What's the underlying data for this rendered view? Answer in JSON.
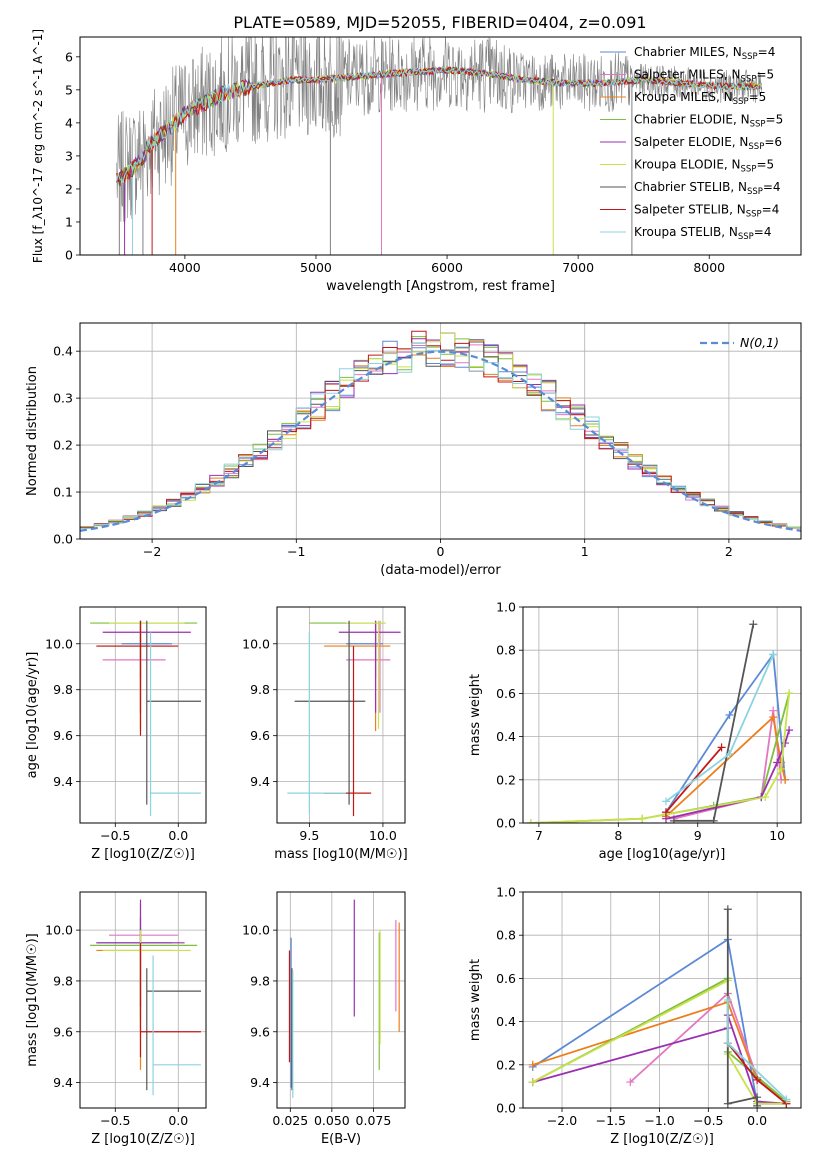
{
  "figure": {
    "title": "PLATE=0589, MJD=52055, FIBERID=0404, z=0.091"
  },
  "colors": {
    "Chabrier MILES": "#5b8ad6",
    "Salpeter MILES": "#e377c2",
    "Kroupa MILES": "#ee7d1b",
    "Chabrier ELODIE": "#7fbf3f",
    "Salpeter ELODIE": "#9b30b0",
    "Kroupa ELODIE": "#c7e24a",
    "Chabrier STELIB": "#555555",
    "Salpeter STELIB": "#c01818",
    "Kroupa STELIB": "#8cd3e0"
  },
  "chart_data": [
    {
      "id": "spectrum",
      "type": "line",
      "xlabel": "wavelength [Angstrom, rest frame]",
      "ylabel": "Flux [f_λ10^-17 erg cm^-2 s^-1 A^-1]",
      "xlim": [
        3200,
        8700
      ],
      "ylim": [
        0,
        6.6
      ],
      "xticks": [
        4000,
        5000,
        6000,
        7000,
        8000
      ],
      "yticks": [
        0,
        1,
        2,
        3,
        4,
        5,
        6
      ],
      "grid": false,
      "legend": "right",
      "continuum": {
        "x": [
          3500,
          3600,
          3700,
          3800,
          3900,
          4000,
          4100,
          4300,
          4500,
          4800,
          5000,
          5300,
          5600,
          6000,
          6300,
          6600,
          6900,
          7200,
          7500,
          7800,
          8100,
          8400
        ],
        "y": [
          2.5,
          2.8,
          3.2,
          3.6,
          3.9,
          4.3,
          4.5,
          4.9,
          5.1,
          5.3,
          5.3,
          5.4,
          5.5,
          5.6,
          5.5,
          5.3,
          5.2,
          5.2,
          5.3,
          5.2,
          5.1,
          5.1
        ]
      },
      "absorption_lines": [
        3500,
        3540,
        3600,
        3680,
        3750,
        3930,
        5110,
        5500,
        6810,
        7410
      ],
      "series": [
        {
          "name": "Chabrier MILES, N_SSP=4",
          "main": "Chabrier MILES, N",
          "sub": "SSP",
          "tail": "=4"
        },
        {
          "name": "Salpeter MILES, N_SSP=5",
          "main": "Salpeter MILES, N",
          "sub": "SSP",
          "tail": "=5"
        },
        {
          "name": "Kroupa MILES, N_SSP=5",
          "main": "Kroupa MILES, N",
          "sub": "SSP",
          "tail": "=5"
        },
        {
          "name": "Chabrier ELODIE, N_SSP=5",
          "main": "Chabrier ELODIE, N",
          "sub": "SSP",
          "tail": "=5"
        },
        {
          "name": "Salpeter ELODIE, N_SSP=6",
          "main": "Salpeter ELODIE, N",
          "sub": "SSP",
          "tail": "=6"
        },
        {
          "name": "Kroupa ELODIE, N_SSP=5",
          "main": "Kroupa ELODIE, N",
          "sub": "SSP",
          "tail": "=5"
        },
        {
          "name": "Chabrier STELIB, N_SSP=4",
          "main": "Chabrier STELIB, N",
          "sub": "SSP",
          "tail": "=4"
        },
        {
          "name": "Salpeter STELIB, N_SSP=4",
          "main": "Salpeter STELIB, N",
          "sub": "SSP",
          "tail": "=4"
        },
        {
          "name": "Kroupa STELIB, N_SSP=4",
          "main": "Kroupa STELIB, N",
          "sub": "SSP",
          "tail": "=4"
        }
      ]
    },
    {
      "id": "residuals",
      "type": "line",
      "xlabel": "(data-model)/error",
      "ylabel": "Normed distribution",
      "xlim": [
        -2.5,
        2.5
      ],
      "ylim": [
        0,
        0.46
      ],
      "xticks": [
        -2,
        -1,
        0,
        1,
        2
      ],
      "yticks": [
        0,
        0.1,
        0.2,
        0.3,
        0.4
      ],
      "grid": true,
      "legend": "top-right",
      "legend_label": "N(0,1)",
      "histogram_bin_width": 0.1
    },
    {
      "id": "age-vs-Z",
      "type": "scatter",
      "xlabel": "Z [log10(Z/Z☉)]",
      "ylabel": "age  [log10(age/yr)]",
      "xlim": [
        -0.78,
        0.22
      ],
      "ylim": [
        9.22,
        10.16
      ],
      "xticks": [
        -0.5,
        0.0
      ],
      "yticks": [
        9.4,
        9.6,
        9.8,
        10.0
      ],
      "grid": true,
      "points": [
        {
          "s": "Chabrier MILES",
          "x": -0.3,
          "y": 10.0,
          "x0": -0.45,
          "x1": -0.05,
          "y0": 9.85,
          "y1": 10.1
        },
        {
          "s": "Salpeter MILES",
          "x": -0.3,
          "y": 9.93,
          "x0": -0.6,
          "x1": -0.1,
          "y0": 9.7,
          "y1": 10.1
        },
        {
          "s": "Kroupa MILES",
          "x": -0.3,
          "y": 9.99,
          "x0": -0.65,
          "x1": -0.05,
          "y0": 9.62,
          "y1": 10.1
        },
        {
          "s": "Chabrier ELODIE",
          "x": -0.3,
          "y": 10.09,
          "x0": -0.7,
          "x1": 0.15,
          "y0": 9.85,
          "y1": 10.1
        },
        {
          "s": "Salpeter ELODIE",
          "x": -0.3,
          "y": 10.05,
          "x0": -0.6,
          "x1": 0.1,
          "y0": 9.7,
          "y1": 10.1
        },
        {
          "s": "Kroupa ELODIE",
          "x": -0.3,
          "y": 10.09,
          "x0": -0.55,
          "x1": 0.05,
          "y0": 9.63,
          "y1": 10.1
        },
        {
          "s": "Chabrier STELIB",
          "x": -0.25,
          "y": 9.75,
          "x0": -0.25,
          "x1": 0.18,
          "y0": 9.3,
          "y1": 10.1
        },
        {
          "s": "Salpeter STELIB",
          "x": -0.3,
          "y": 9.99,
          "x0": -0.65,
          "x1": 0.0,
          "y0": 9.6,
          "y1": 10.1
        },
        {
          "s": "Kroupa STELIB",
          "x": -0.22,
          "y": 9.35,
          "x0": -0.22,
          "x1": 0.18,
          "y0": 9.25,
          "y1": 10.05
        }
      ]
    },
    {
      "id": "age-vs-mass",
      "type": "scatter",
      "xlabel": "mass [log10(M/M☉)]",
      "ylabel": "",
      "xlim": [
        9.28,
        10.15
      ],
      "ylim": [
        9.22,
        10.16
      ],
      "xticks": [
        9.5,
        10.0
      ],
      "yticks": [
        9.4,
        9.6,
        9.8,
        10.0
      ],
      "grid": true,
      "points": [
        {
          "s": "Chabrier MILES",
          "x": 9.95,
          "y": 10.0,
          "x0": 9.75,
          "x1": 10.0,
          "y0": 9.85,
          "y1": 10.1
        },
        {
          "s": "Salpeter MILES",
          "x": 9.98,
          "y": 9.93,
          "x0": 9.75,
          "x1": 10.05,
          "y0": 9.7,
          "y1": 10.1
        },
        {
          "s": "Kroupa MILES",
          "x": 9.95,
          "y": 9.99,
          "x0": 9.6,
          "x1": 10.05,
          "y0": 9.62,
          "y1": 10.1
        },
        {
          "s": "Chabrier ELODIE",
          "x": 9.95,
          "y": 10.09,
          "x0": 9.5,
          "x1": 10.0,
          "y0": 9.9,
          "y1": 10.1
        },
        {
          "s": "Salpeter ELODIE",
          "x": 9.95,
          "y": 10.05,
          "x0": 9.7,
          "x1": 10.12,
          "y0": 9.7,
          "y1": 10.1
        },
        {
          "s": "Kroupa ELODIE",
          "x": 9.97,
          "y": 10.09,
          "x0": 9.75,
          "x1": 10.02,
          "y0": 9.63,
          "y1": 10.1
        },
        {
          "s": "Chabrier STELIB",
          "x": 9.77,
          "y": 9.75,
          "x0": 9.4,
          "x1": 9.88,
          "y0": 9.3,
          "y1": 10.1
        },
        {
          "s": "Salpeter STELIB",
          "x": 9.8,
          "y": 9.35,
          "x0": 9.6,
          "x1": 9.92,
          "y0": 9.25,
          "y1": 9.99
        },
        {
          "s": "Kroupa STELIB",
          "x": 9.5,
          "y": 9.35,
          "x0": 9.35,
          "x1": 9.75,
          "y0": 9.26,
          "y1": 10.05
        }
      ]
    },
    {
      "id": "mass-weight-vs-age",
      "type": "line",
      "xlabel": "age  [log10(age/yr)]",
      "ylabel": "mass weight",
      "xlim": [
        6.8,
        10.3
      ],
      "ylim": [
        0,
        1.0
      ],
      "xticks": [
        7,
        8,
        9,
        10
      ],
      "yticks": [
        0.0,
        0.2,
        0.4,
        0.6,
        0.8,
        1.0
      ],
      "grid": true,
      "series": [
        {
          "s": "Chabrier MILES",
          "x": [
            8.6,
            9.4,
            9.95,
            10.1
          ],
          "y": [
            0.05,
            0.5,
            0.78,
            0.2
          ]
        },
        {
          "s": "Salpeter MILES",
          "x": [
            8.7,
            9.8,
            9.95,
            10.05
          ],
          "y": [
            0.02,
            0.12,
            0.52,
            0.2
          ]
        },
        {
          "s": "Kroupa MILES",
          "x": [
            8.6,
            9.95,
            10.05,
            10.1
          ],
          "y": [
            0.03,
            0.49,
            0.28,
            0.2
          ]
        },
        {
          "s": "Chabrier ELODIE",
          "x": [
            6.9,
            8.3,
            8.6,
            9.2,
            9.8,
            10.15
          ],
          "y": [
            0.0,
            0.02,
            0.04,
            0.08,
            0.12,
            0.6
          ]
        },
        {
          "s": "Salpeter ELODIE",
          "x": [
            8.6,
            9.8,
            10.0,
            10.1,
            10.15
          ],
          "y": [
            0.02,
            0.12,
            0.28,
            0.37,
            0.43
          ]
        },
        {
          "s": "Kroupa ELODIE",
          "x": [
            6.9,
            8.3,
            9.85,
            10.05,
            10.15
          ],
          "y": [
            0.0,
            0.02,
            0.12,
            0.25,
            0.6
          ]
        },
        {
          "s": "Chabrier STELIB",
          "x": [
            8.7,
            9.2,
            9.7
          ],
          "y": [
            0.01,
            0.01,
            0.92
          ]
        },
        {
          "s": "Salpeter STELIB",
          "x": [
            8.6,
            9.3
          ],
          "y": [
            0.05,
            0.35
          ]
        },
        {
          "s": "Kroupa STELIB",
          "x": [
            8.6,
            9.4,
            9.95
          ],
          "y": [
            0.1,
            0.32,
            0.78
          ]
        }
      ]
    },
    {
      "id": "mass-vs-Z",
      "type": "scatter",
      "xlabel": "Z [log10(Z/Z☉)]",
      "ylabel": "mass [log10(M/M☉)]",
      "xlim": [
        -0.78,
        0.22
      ],
      "ylim": [
        9.3,
        10.15
      ],
      "xticks": [
        -0.5,
        0.0
      ],
      "yticks": [
        9.4,
        9.6,
        9.8,
        10.0
      ],
      "grid": true,
      "points": [
        {
          "s": "Chabrier MILES",
          "x": -0.3,
          "y": 9.95,
          "x0": -0.65,
          "x1": -0.05,
          "y0": 9.7,
          "y1": 10.05
        },
        {
          "s": "Salpeter MILES",
          "x": -0.3,
          "y": 9.98,
          "x0": -0.55,
          "x1": 0.0,
          "y0": 9.6,
          "y1": 10.05
        },
        {
          "s": "Kroupa MILES",
          "x": -0.3,
          "y": 9.92,
          "x0": -0.65,
          "x1": -0.05,
          "y0": 9.45,
          "y1": 10.0
        },
        {
          "s": "Chabrier ELODIE",
          "x": -0.3,
          "y": 9.94,
          "x0": -0.7,
          "x1": 0.15,
          "y0": 9.65,
          "y1": 10.1
        },
        {
          "s": "Salpeter ELODIE",
          "x": -0.3,
          "y": 9.95,
          "x0": -0.65,
          "x1": 0.05,
          "y0": 9.7,
          "y1": 10.12
        },
        {
          "s": "Kroupa ELODIE",
          "x": -0.3,
          "y": 9.92,
          "x0": -0.6,
          "x1": 0.1,
          "y0": 9.62,
          "y1": 10.0
        },
        {
          "s": "Chabrier STELIB",
          "x": -0.25,
          "y": 9.76,
          "x0": -0.25,
          "x1": 0.18,
          "y0": 9.37,
          "y1": 9.85
        },
        {
          "s": "Salpeter STELIB",
          "x": -0.3,
          "y": 9.6,
          "x0": -0.3,
          "x1": 0.18,
          "y0": 9.5,
          "y1": 9.95
        },
        {
          "s": "Kroupa STELIB",
          "x": -0.2,
          "y": 9.47,
          "x0": -0.2,
          "x1": 0.18,
          "y0": 9.35,
          "y1": 9.9
        }
      ]
    },
    {
      "id": "mass-vs-ebv",
      "type": "scatter",
      "xlabel": "E(B-V)",
      "ylabel": "",
      "xlim": [
        0.017,
        0.094
      ],
      "ylim": [
        9.3,
        10.15
      ],
      "xticks": [
        0.025,
        0.05,
        0.075
      ],
      "yticks": [
        9.4,
        9.6,
        9.8,
        10.0
      ],
      "grid": true,
      "points": [
        {
          "s": "Chabrier MILES",
          "x": 0.0255,
          "y0": 9.38,
          "y1": 9.97
        },
        {
          "s": "Salpeter MILES",
          "x": 0.0885,
          "y0": 9.68,
          "y1": 10.04
        },
        {
          "s": "Kroupa MILES",
          "x": 0.0905,
          "y0": 9.6,
          "y1": 10.03
        },
        {
          "s": "Chabrier ELODIE",
          "x": 0.0785,
          "y0": 9.45,
          "y1": 9.99
        },
        {
          "s": "Salpeter ELODIE",
          "x": 0.0635,
          "y0": 9.66,
          "y1": 10.12
        },
        {
          "s": "Kroupa ELODIE",
          "x": 0.079,
          "y0": 9.55,
          "y1": 10.0
        },
        {
          "s": "Chabrier STELIB",
          "x": 0.026,
          "y0": 9.37,
          "y1": 9.85
        },
        {
          "s": "Salpeter STELIB",
          "x": 0.0245,
          "y0": 9.48,
          "y1": 9.92
        },
        {
          "s": "Kroupa STELIB",
          "x": 0.0265,
          "y0": 9.34,
          "y1": 9.84
        }
      ]
    },
    {
      "id": "mass-weight-vs-Z",
      "type": "line",
      "xlabel": "Z [log10(Z/Z☉)]",
      "ylabel": "mass weight",
      "xlim": [
        -2.4,
        0.45
      ],
      "ylim": [
        0,
        1.0
      ],
      "xticks": [
        -2.0,
        -1.5,
        -1.0,
        -0.5,
        0.0
      ],
      "yticks": [
        0.0,
        0.2,
        0.4,
        0.6,
        0.8,
        1.0
      ],
      "grid": true,
      "series": [
        {
          "s": "Chabrier MILES",
          "x": [
            -2.3,
            -0.3,
            0.0,
            0.3
          ],
          "y": [
            0.19,
            0.78,
            0.02,
            0.02
          ]
        },
        {
          "s": "Salpeter MILES",
          "x": [
            -1.3,
            -0.3,
            0.0,
            0.3
          ],
          "y": [
            0.12,
            0.53,
            0.14,
            0.02
          ]
        },
        {
          "s": "Kroupa MILES",
          "x": [
            -2.3,
            -0.3,
            0.0,
            0.3
          ],
          "y": [
            0.2,
            0.49,
            0.13,
            0.03
          ]
        },
        {
          "s": "Chabrier ELODIE",
          "x": [
            -2.3,
            -0.3,
            -0.3,
            0.3
          ],
          "y": [
            0.12,
            0.6,
            0.26,
            0.03
          ]
        },
        {
          "s": "Salpeter ELODIE",
          "x": [
            -2.3,
            -0.3,
            -0.3,
            0.0,
            0.3
          ],
          "y": [
            0.12,
            0.37,
            0.43,
            0.03,
            0.02
          ]
        },
        {
          "s": "Kroupa ELODIE",
          "x": [
            -2.3,
            -0.3,
            -0.3,
            0.0,
            0.3
          ],
          "y": [
            0.12,
            0.59,
            0.25,
            0.02,
            0.02
          ]
        },
        {
          "s": "Chabrier STELIB",
          "x": [
            -0.3,
            -0.3,
            0.0,
            0.0
          ],
          "y": [
            0.92,
            0.02,
            0.05,
            0.01
          ]
        },
        {
          "s": "Salpeter STELIB",
          "x": [
            -0.3,
            0.0,
            0.3
          ],
          "y": [
            0.3,
            0.13,
            0.02
          ]
        },
        {
          "s": "Kroupa STELIB",
          "x": [
            -0.3,
            -0.3,
            0.3
          ],
          "y": [
            0.5,
            0.3,
            0.04
          ]
        }
      ]
    }
  ]
}
